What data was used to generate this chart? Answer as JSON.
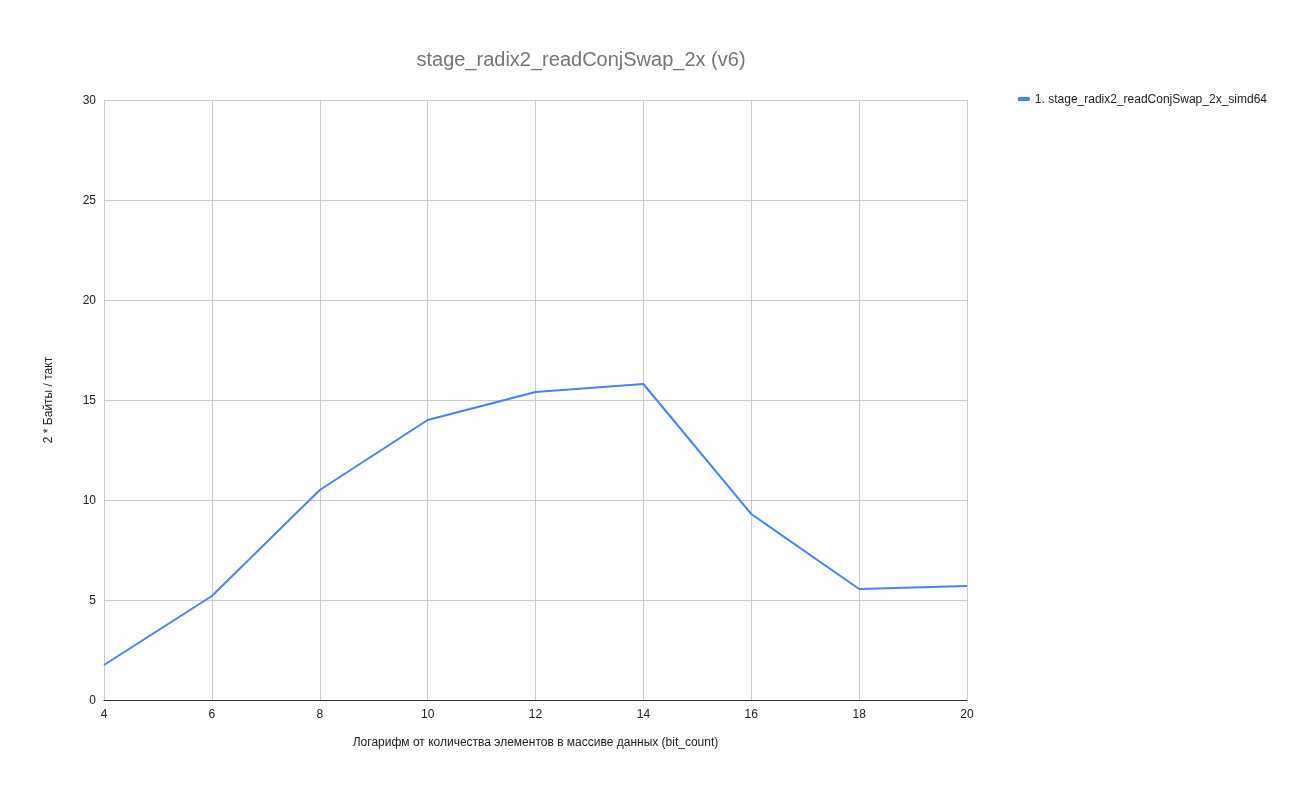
{
  "chart_data": {
    "type": "line",
    "title": "stage_radix2_readConjSwap_2x (v6)",
    "xlabel": "Логарифм от количества элементов в массиве данных (bit_count)",
    "ylabel": "2 * Байты / такт",
    "x": [
      4,
      6,
      8,
      10,
      12,
      14,
      16,
      18,
      20
    ],
    "series": [
      {
        "name": "1. stage_radix2_readConjSwap_2x_simd64",
        "color": "#4285f4",
        "values": [
          1.75,
          5.2,
          10.5,
          14,
          15.4,
          15.8,
          9.3,
          5.55,
          5.7
        ]
      }
    ],
    "xlim": [
      4,
      20
    ],
    "xticks": [
      4,
      6,
      8,
      10,
      12,
      14,
      16,
      18,
      20
    ],
    "ylim": [
      0,
      30
    ],
    "yticks": [
      0,
      5,
      10,
      15,
      20,
      25,
      30
    ],
    "grid": true,
    "legend": "top right",
    "marker": "none",
    "line_style": "solid"
  }
}
